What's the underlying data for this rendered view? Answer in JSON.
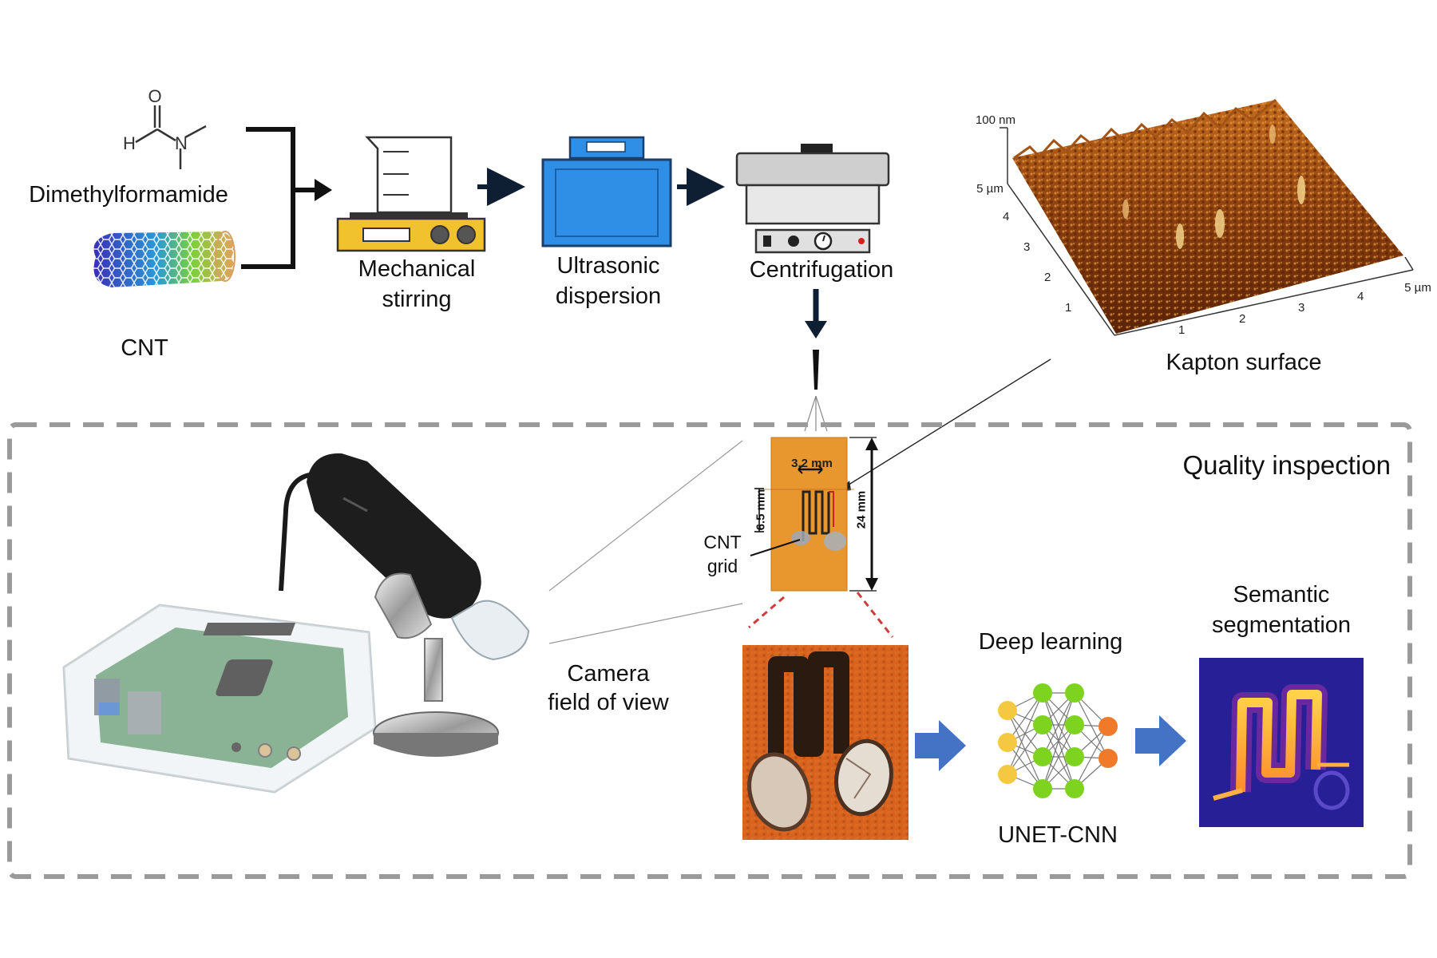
{
  "labels": {
    "dmf": "Dimethylformamide",
    "dmf_atom_o": "O",
    "dmf_atom_h": "H",
    "dmf_atom_n": "N",
    "cnt": "CNT",
    "mechanical_stirring": "Mechanical\nstirring",
    "ultrasonic_dispersion": "Ultrasonic\ndispersion",
    "centrifugation": "Centrifugation",
    "kapton_surface": "Kapton surface",
    "quality_inspection": "Quality inspection",
    "cnt_grid": "CNT\ngrid",
    "camera_fov": "Camera\nfield of view",
    "deep_learning": "Deep learning",
    "unet_cnn": "UNET-CNN",
    "semantic_segmentation": "Semantic\nsegmentation"
  },
  "afm": {
    "z_label": "100 nm",
    "y_max_label": "5 µm",
    "x_max_label": "5 µm",
    "y_ticks": [
      "4",
      "3",
      "2",
      "1"
    ],
    "x_ticks": [
      "1",
      "2",
      "3",
      "4"
    ]
  },
  "sensor": {
    "width_label": "3.2 mm",
    "grid_height_label": "6.5 mm",
    "length_label": "24 mm"
  },
  "colors": {
    "arrow_dark": "#0f1f33",
    "arrow_blue": "#4472c4",
    "dashed_border": "#9a9a9a",
    "ultrasonic_blue": "#2f8ee6",
    "stirrer_yellow": "#f2c22e",
    "kapton_orange": "#e8962e",
    "afm_brown": "#8a3f0e",
    "nn_yellow": "#f5c842",
    "nn_green": "#7ed321",
    "nn_orange": "#f07a2a",
    "seg_bg": "#1e1a8c"
  },
  "icons": {
    "molecule": "dmf-molecule-icon",
    "nanotube": "carbon-nanotube-icon",
    "stirrer": "magnetic-stirrer-icon",
    "sonicator": "ultrasonic-bath-icon",
    "centrifuge": "centrifuge-icon",
    "spray": "spray-nozzle-icon",
    "microscope": "usb-microscope-icon",
    "computer": "raspberry-pi-icon",
    "network": "neural-network-icon"
  }
}
